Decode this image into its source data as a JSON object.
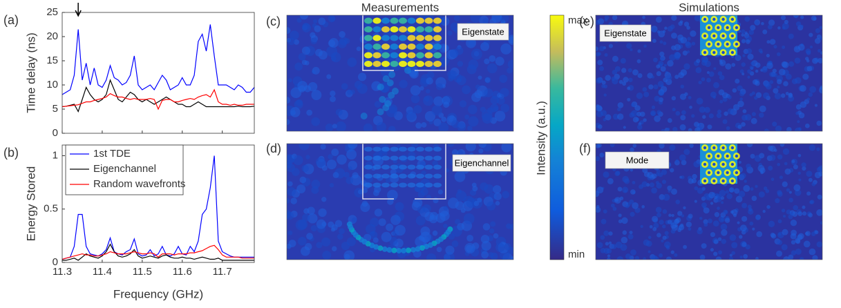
{
  "chart_data": [
    {
      "type": "line",
      "label": "(a)",
      "ylabel": "Time delay (ns)",
      "x": [
        11.3,
        11.31,
        11.32,
        11.33,
        11.34,
        11.35,
        11.36,
        11.37,
        11.38,
        11.39,
        11.4,
        11.41,
        11.42,
        11.43,
        11.44,
        11.45,
        11.46,
        11.47,
        11.48,
        11.49,
        11.5,
        11.51,
        11.52,
        11.53,
        11.54,
        11.55,
        11.56,
        11.57,
        11.58,
        11.59,
        11.6,
        11.61,
        11.62,
        11.63,
        11.64,
        11.65,
        11.66,
        11.67,
        11.68,
        11.69,
        11.7,
        11.71,
        11.72,
        11.73,
        11.74,
        11.75,
        11.76,
        11.77,
        11.78
      ],
      "series": [
        {
          "color": "#0000ff",
          "values": [
            8,
            8.5,
            9,
            12,
            21.5,
            11,
            14.5,
            10,
            13.5,
            10,
            9.5,
            11,
            14,
            11.5,
            11,
            10,
            10.5,
            12,
            16,
            10,
            9,
            9.5,
            10,
            9,
            10.5,
            12,
            11,
            9,
            9.5,
            10,
            11.5,
            10,
            10,
            12,
            19,
            20.5,
            17,
            22.5,
            16,
            10,
            10,
            10,
            9.5,
            9,
            10,
            9.5,
            8.5,
            8.5,
            9.5
          ]
        },
        {
          "color": "#000000",
          "values": [
            5.5,
            5.6,
            5.8,
            6,
            4.5,
            7,
            9.5,
            8,
            7,
            6.5,
            7,
            8,
            11,
            9,
            7,
            6.5,
            7.5,
            8.5,
            8,
            7,
            6.5,
            7,
            6.5,
            6,
            6.5,
            7,
            7.5,
            7,
            6.5,
            6,
            6,
            5.5,
            5.5,
            6,
            6.5,
            6,
            5.5,
            5.5,
            5.5,
            5.5,
            5.5,
            5.5,
            5.5,
            5.5,
            5.6,
            5.5,
            5.5,
            5.5,
            5.6
          ]
        },
        {
          "color": "#ff0000",
          "values": [
            5.5,
            5.6,
            5.7,
            5.8,
            5.9,
            6.2,
            6.5,
            6.5,
            6.8,
            7,
            7.2,
            7.5,
            8.2,
            7.8,
            7.5,
            7.5,
            7.2,
            7,
            7.2,
            7,
            7,
            7,
            7.2,
            7,
            5,
            6.8,
            7,
            7,
            6.5,
            6.5,
            6.8,
            7,
            7.2,
            7,
            7.5,
            7.8,
            8,
            7.5,
            9,
            6.5,
            6,
            6,
            5.8,
            6,
            5.8,
            5.8,
            6,
            6,
            6
          ]
        }
      ],
      "xlim": [
        11.3,
        11.78
      ],
      "ylim": [
        0,
        25
      ],
      "xticks": [
        11.3,
        11.4,
        11.5,
        11.6,
        11.7
      ],
      "yticks": [
        0,
        5,
        10,
        15,
        20,
        25
      ]
    },
    {
      "type": "line",
      "label": "(b)",
      "ylabel": "Energy Stored",
      "xlabel": "Frequency (GHz)",
      "x": [
        11.3,
        11.31,
        11.32,
        11.33,
        11.34,
        11.35,
        11.36,
        11.37,
        11.38,
        11.39,
        11.4,
        11.41,
        11.42,
        11.43,
        11.44,
        11.45,
        11.46,
        11.47,
        11.48,
        11.49,
        11.5,
        11.51,
        11.52,
        11.53,
        11.54,
        11.55,
        11.56,
        11.57,
        11.58,
        11.59,
        11.6,
        11.61,
        11.62,
        11.63,
        11.64,
        11.65,
        11.66,
        11.67,
        11.68,
        11.69,
        11.7,
        11.71,
        11.72,
        11.73,
        11.74,
        11.75,
        11.76,
        11.77,
        11.78
      ],
      "series": [
        {
          "name": "1st TDE",
          "color": "#0000ff",
          "values": [
            0.03,
            0.04,
            0.05,
            0.15,
            0.45,
            0.45,
            0.15,
            0.08,
            0.07,
            0.06,
            0.08,
            0.12,
            0.23,
            0.1,
            0.08,
            0.07,
            0.1,
            0.12,
            0.22,
            0.08,
            0.06,
            0.07,
            0.12,
            0.06,
            0.08,
            0.15,
            0.07,
            0.06,
            0.08,
            0.15,
            0.08,
            0.07,
            0.15,
            0.1,
            0.2,
            0.45,
            0.5,
            0.7,
            1.0,
            0.2,
            0.1,
            0.08,
            0.06,
            0.05,
            0.05,
            0.05,
            0.05,
            0.05,
            0.05
          ]
        },
        {
          "name": "Eigenchannel",
          "color": "#000000",
          "values": [
            0.02,
            0.02,
            0.03,
            0.04,
            0.02,
            0.05,
            0.08,
            0.06,
            0.05,
            0.04,
            0.06,
            0.1,
            0.17,
            0.1,
            0.06,
            0.05,
            0.06,
            0.08,
            0.12,
            0.06,
            0.04,
            0.05,
            0.06,
            0.05,
            0.04,
            0.06,
            0.07,
            0.05,
            0.04,
            0.04,
            0.05,
            0.04,
            0.04,
            0.03,
            0.04,
            0.05,
            0.04,
            0.03,
            0.03,
            0.04,
            0.02,
            0.02,
            0.02,
            0.02,
            0.02,
            0.02,
            0.02,
            0.02,
            0.02
          ]
        },
        {
          "name": "Random wavefronts",
          "color": "#ff0000",
          "values": [
            0.03,
            0.04,
            0.05,
            0.06,
            0.07,
            0.08,
            0.07,
            0.07,
            0.06,
            0.06,
            0.07,
            0.08,
            0.1,
            0.09,
            0.08,
            0.08,
            0.08,
            0.09,
            0.1,
            0.09,
            0.08,
            0.08,
            0.09,
            0.08,
            0.05,
            0.08,
            0.08,
            0.08,
            0.07,
            0.08,
            0.08,
            0.08,
            0.09,
            0.09,
            0.1,
            0.11,
            0.13,
            0.15,
            0.16,
            0.12,
            0.07,
            0.05,
            0.05,
            0.05,
            0.05,
            0.04,
            0.04,
            0.04,
            0.04
          ]
        }
      ],
      "xlim": [
        11.3,
        11.78
      ],
      "ylim": [
        0,
        1.1
      ],
      "xticks": [
        11.3,
        11.4,
        11.5,
        11.6,
        11.7
      ],
      "yticks": [
        0,
        0.5,
        1
      ],
      "legend": "upper left"
    }
  ],
  "column_titles": [
    "Measurements",
    "Simulations"
  ],
  "panels": [
    {
      "label": "(c)",
      "tag": "Eigenstate"
    },
    {
      "label": "(d)",
      "tag": "Eigenchannel"
    },
    {
      "label": "(e)",
      "tag": "Eigenstate"
    },
    {
      "label": "(f)",
      "tag": "Mode"
    }
  ],
  "colorbar": {
    "label": "Intensity (a.u.)",
    "top": "max",
    "bottom": "min"
  }
}
